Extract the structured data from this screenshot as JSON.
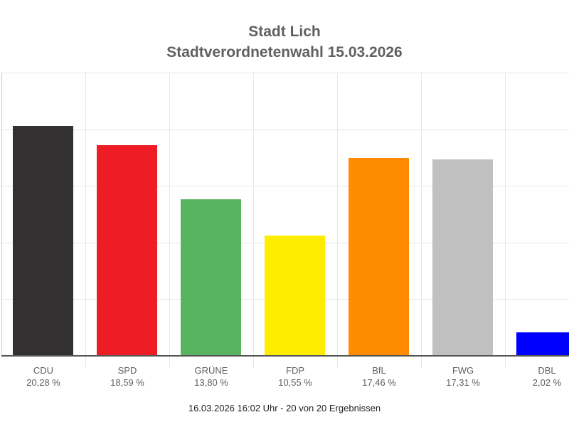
{
  "title": "Stadt Lich",
  "subtitle": "Stadtverordnetenwahl 15.03.2026",
  "footer": "16.03.2026 16:02 Uhr - 20 von 20 Ergebnissen",
  "parties": [
    {
      "name": "CDU",
      "label": "20,28 %",
      "color": "#333132"
    },
    {
      "name": "SPD",
      "label": "18,59 %",
      "color": "#ee1c25"
    },
    {
      "name": "GRÜNE",
      "label": "13,80 %",
      "color": "#59b462"
    },
    {
      "name": "FDP",
      "label": "10,55 %",
      "color": "#ffed00"
    },
    {
      "name": "BfL",
      "label": "17,46 %",
      "color": "#ff8c00"
    },
    {
      "name": "FWG",
      "label": "17,31 %",
      "color": "#c0c0c0"
    },
    {
      "name": "DBL",
      "label": "2,02 %",
      "color": "#0000ff"
    }
  ],
  "chart_data": {
    "type": "bar",
    "title": "Stadt Lich",
    "subtitle": "Stadtverordnetenwahl 15.03.2026",
    "categories": [
      "CDU",
      "SPD",
      "GRÜNE",
      "FDP",
      "BfL",
      "FWG",
      "DBL"
    ],
    "values": [
      20.28,
      18.59,
      13.8,
      10.55,
      17.46,
      17.31,
      2.02
    ],
    "value_labels": [
      "20,28 %",
      "18,59 %",
      "13,80 %",
      "10,55 %",
      "17,46 %",
      "17,31 %",
      "2,02 %"
    ],
    "colors": [
      "#333132",
      "#ee1c25",
      "#59b462",
      "#ffed00",
      "#ff8c00",
      "#c0c0c0",
      "#0000ff"
    ],
    "xlabel": "",
    "ylabel": "",
    "ylim": [
      0,
      25
    ],
    "grid": true,
    "legend": "none",
    "annotation": "16.03.2026 16:02 Uhr - 20 von 20 Ergebnissen"
  }
}
